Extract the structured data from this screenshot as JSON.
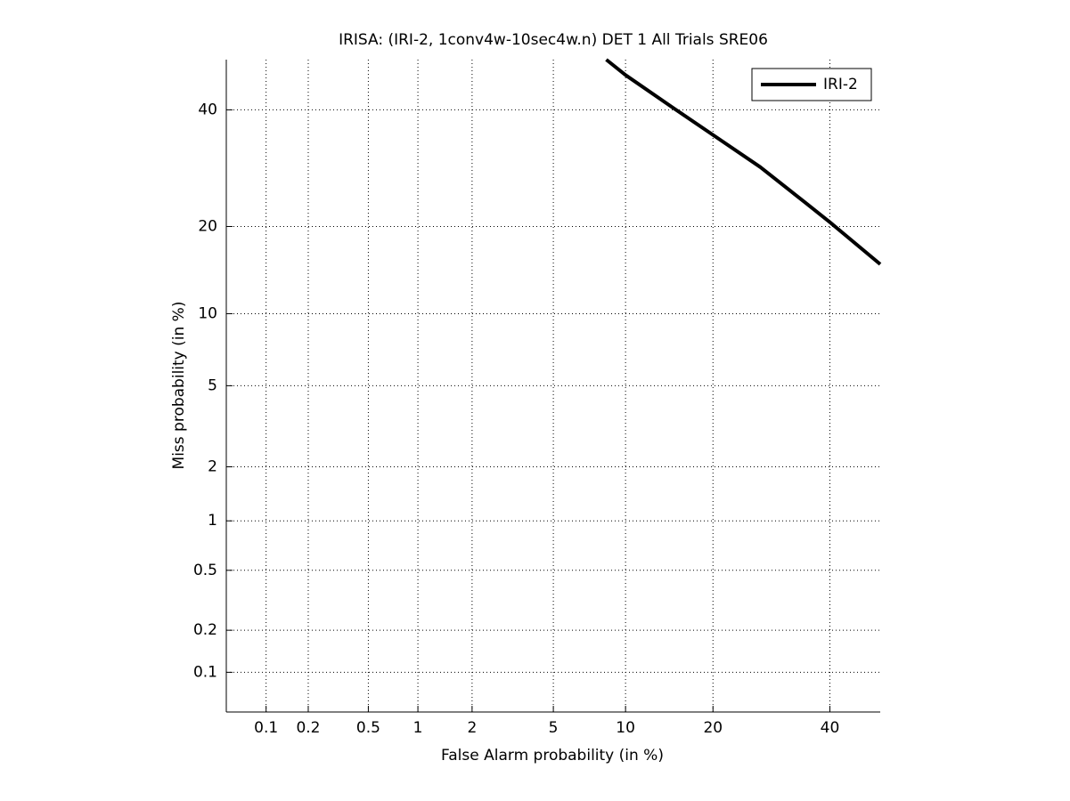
{
  "chart_data": {
    "type": "line",
    "scale": "probit",
    "title": "IRISA: (IRI-2, 1conv4w-10sec4w.n) DET 1 All Trials SRE06",
    "xlabel": "False Alarm probability (in %)",
    "ylabel": "Miss probability (in %)",
    "x": [
      8.4,
      10,
      14.6,
      20,
      27.3,
      35.2,
      40,
      50
    ],
    "series": [
      {
        "name": "IRI-2",
        "color": "#000000",
        "values": [
          50,
          46.9,
          40.7,
          35.2,
          29.4,
          23.6,
          20.6,
          15.1
        ]
      }
    ],
    "xlim": [
      0.05,
      50
    ],
    "ylim": [
      0.05,
      50
    ],
    "xticks": [
      0.1,
      0.2,
      0.5,
      1,
      2,
      5,
      10,
      20,
      40
    ],
    "yticks": [
      0.1,
      0.2,
      0.5,
      1,
      2,
      5,
      10,
      20,
      40
    ],
    "grid": true,
    "legend": "upper right"
  }
}
